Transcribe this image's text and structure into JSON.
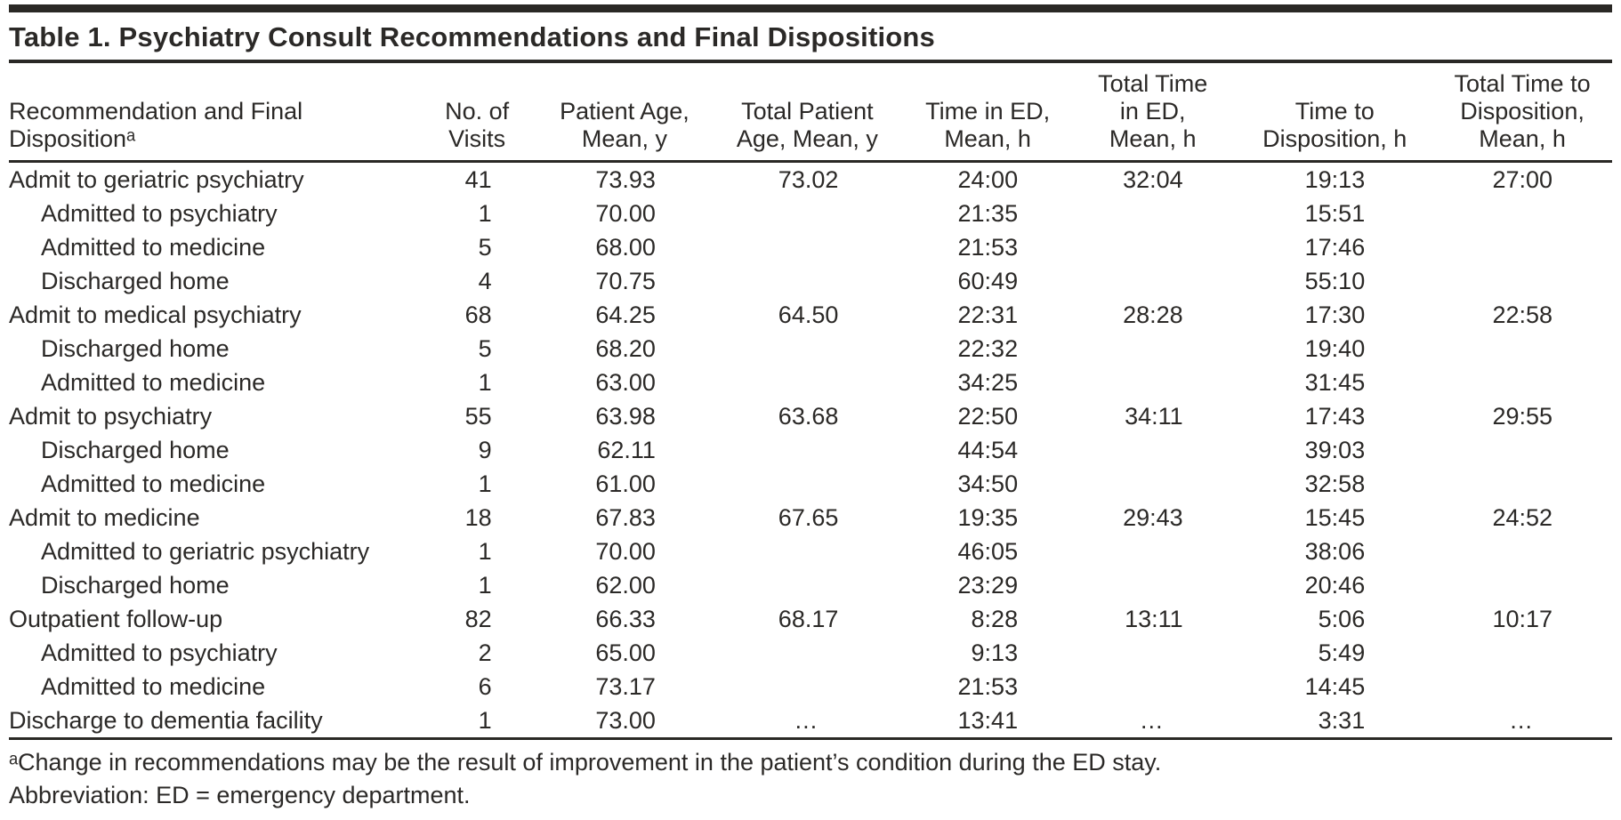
{
  "title": "Table 1. Psychiatry Consult Recommendations and Final Dispositions",
  "colors": {
    "text": "#2b2927",
    "rule": "#2a2825",
    "background": "#ffffff"
  },
  "table": {
    "columns": [
      {
        "id": "label",
        "lines": [
          "Recommendation and Final",
          "Dispositionᵃ"
        ]
      },
      {
        "id": "visits",
        "lines": [
          "No. of",
          "Visits"
        ]
      },
      {
        "id": "age",
        "lines": [
          "Patient Age,",
          "Mean, y"
        ]
      },
      {
        "id": "total_age",
        "lines": [
          "Total Patient",
          "Age, Mean, y"
        ]
      },
      {
        "id": "time_ed",
        "lines": [
          "Time in ED,",
          "Mean, h"
        ]
      },
      {
        "id": "total_time_ed",
        "lines": [
          "Total Time",
          "in ED,",
          "Mean, h"
        ]
      },
      {
        "id": "time_dispo",
        "lines": [
          "Time to",
          "Disposition, h"
        ]
      },
      {
        "id": "total_time_dispo",
        "lines": [
          "Total Time to",
          "Disposition,",
          "Mean, h"
        ]
      }
    ],
    "rows": [
      {
        "label": "Admit to geriatric psychiatry",
        "indent": false,
        "visits": "41",
        "age": "73.93",
        "total_age": "73.02",
        "time_ed": "24:00",
        "total_time_ed": "32:04",
        "time_dispo": "19:13",
        "total_time_dispo": "27:00"
      },
      {
        "label": "Admitted to psychiatry",
        "indent": true,
        "visits": "1",
        "age": "70.00",
        "total_age": "",
        "time_ed": "21:35",
        "total_time_ed": "",
        "time_dispo": "15:51",
        "total_time_dispo": ""
      },
      {
        "label": "Admitted to medicine",
        "indent": true,
        "visits": "5",
        "age": "68.00",
        "total_age": "",
        "time_ed": "21:53",
        "total_time_ed": "",
        "time_dispo": "17:46",
        "total_time_dispo": ""
      },
      {
        "label": "Discharged home",
        "indent": true,
        "visits": "4",
        "age": "70.75",
        "total_age": "",
        "time_ed": "60:49",
        "total_time_ed": "",
        "time_dispo": "55:10",
        "total_time_dispo": ""
      },
      {
        "label": "Admit to medical psychiatry",
        "indent": false,
        "visits": "68",
        "age": "64.25",
        "total_age": "64.50",
        "time_ed": "22:31",
        "total_time_ed": "28:28",
        "time_dispo": "17:30",
        "total_time_dispo": "22:58"
      },
      {
        "label": "Discharged home",
        "indent": true,
        "visits": "5",
        "age": "68.20",
        "total_age": "",
        "time_ed": "22:32",
        "total_time_ed": "",
        "time_dispo": "19:40",
        "total_time_dispo": ""
      },
      {
        "label": "Admitted to medicine",
        "indent": true,
        "visits": "1",
        "age": "63.00",
        "total_age": "",
        "time_ed": "34:25",
        "total_time_ed": "",
        "time_dispo": "31:45",
        "total_time_dispo": ""
      },
      {
        "label": "Admit to psychiatry",
        "indent": false,
        "visits": "55",
        "age": "63.98",
        "total_age": "63.68",
        "time_ed": "22:50",
        "total_time_ed": "34:11",
        "time_dispo": "17:43",
        "total_time_dispo": "29:55"
      },
      {
        "label": "Discharged home",
        "indent": true,
        "visits": "9",
        "age": "62.11",
        "total_age": "",
        "time_ed": "44:54",
        "total_time_ed": "",
        "time_dispo": "39:03",
        "total_time_dispo": ""
      },
      {
        "label": "Admitted to medicine",
        "indent": true,
        "visits": "1",
        "age": "61.00",
        "total_age": "",
        "time_ed": "34:50",
        "total_time_ed": "",
        "time_dispo": "32:58",
        "total_time_dispo": ""
      },
      {
        "label": "Admit to medicine",
        "indent": false,
        "visits": "18",
        "age": "67.83",
        "total_age": "67.65",
        "time_ed": "19:35",
        "total_time_ed": "29:43",
        "time_dispo": "15:45",
        "total_time_dispo": "24:52"
      },
      {
        "label": "Admitted to geriatric psychiatry",
        "indent": true,
        "visits": "1",
        "age": "70.00",
        "total_age": "",
        "time_ed": "46:05",
        "total_time_ed": "",
        "time_dispo": "38:06",
        "total_time_dispo": ""
      },
      {
        "label": "Discharged home",
        "indent": true,
        "visits": "1",
        "age": "62.00",
        "total_age": "",
        "time_ed": "23:29",
        "total_time_ed": "",
        "time_dispo": "20:46",
        "total_time_dispo": ""
      },
      {
        "label": "Outpatient follow-up",
        "indent": false,
        "visits": "82",
        "age": "66.33",
        "total_age": "68.17",
        "time_ed": "8:28",
        "total_time_ed": "13:11",
        "time_dispo": "5:06",
        "total_time_dispo": "10:17"
      },
      {
        "label": "Admitted to psychiatry",
        "indent": true,
        "visits": "2",
        "age": "65.00",
        "total_age": "",
        "time_ed": "9:13",
        "total_time_ed": "",
        "time_dispo": "5:49",
        "total_time_dispo": ""
      },
      {
        "label": "Admitted to medicine",
        "indent": true,
        "visits": "6",
        "age": "73.17",
        "total_age": "",
        "time_ed": "21:53",
        "total_time_ed": "",
        "time_dispo": "14:45",
        "total_time_dispo": ""
      },
      {
        "label": "Discharge to dementia facility",
        "indent": false,
        "visits": "1",
        "age": "73.00",
        "total_age": "…",
        "time_ed": "13:41",
        "total_time_ed": "…",
        "time_dispo": "3:31",
        "total_time_dispo": "…"
      }
    ]
  },
  "footnotes": [
    "ᵃChange in recommendations may be the result of improvement in the patient’s condition during the ED stay.",
    "Abbreviation: ED = emergency department."
  ]
}
